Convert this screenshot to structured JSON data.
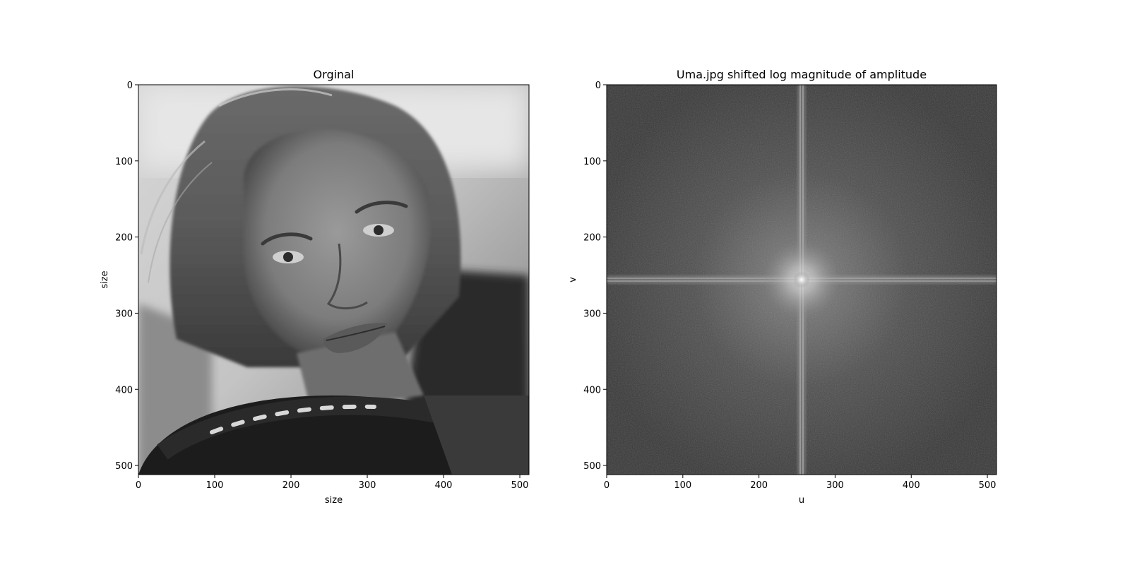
{
  "chart_data": [
    {
      "type": "heatmap",
      "title": "Orginal",
      "xlabel": "size",
      "ylabel": "size",
      "image_size": [
        512,
        512
      ],
      "xlim": [
        0,
        512
      ],
      "ylim": [
        512,
        0
      ],
      "xticks": [
        0,
        100,
        200,
        300,
        400,
        500
      ],
      "yticks": [
        0,
        100,
        200,
        300,
        400,
        500
      ],
      "colormap": "gray",
      "content": "grayscale photograph"
    },
    {
      "type": "heatmap",
      "title": "Uma.jpg shifted log magnitude of amplitude",
      "xlabel": "u",
      "ylabel": "v",
      "image_size": [
        512,
        512
      ],
      "xlim": [
        0,
        512
      ],
      "ylim": [
        512,
        0
      ],
      "xticks": [
        0,
        100,
        200,
        300,
        400,
        500
      ],
      "yticks": [
        0,
        100,
        200,
        300,
        400,
        500
      ],
      "colormap": "gray",
      "content": "log magnitude spectrum, bright center at (256, 256) with horizontal and vertical streaks"
    }
  ]
}
